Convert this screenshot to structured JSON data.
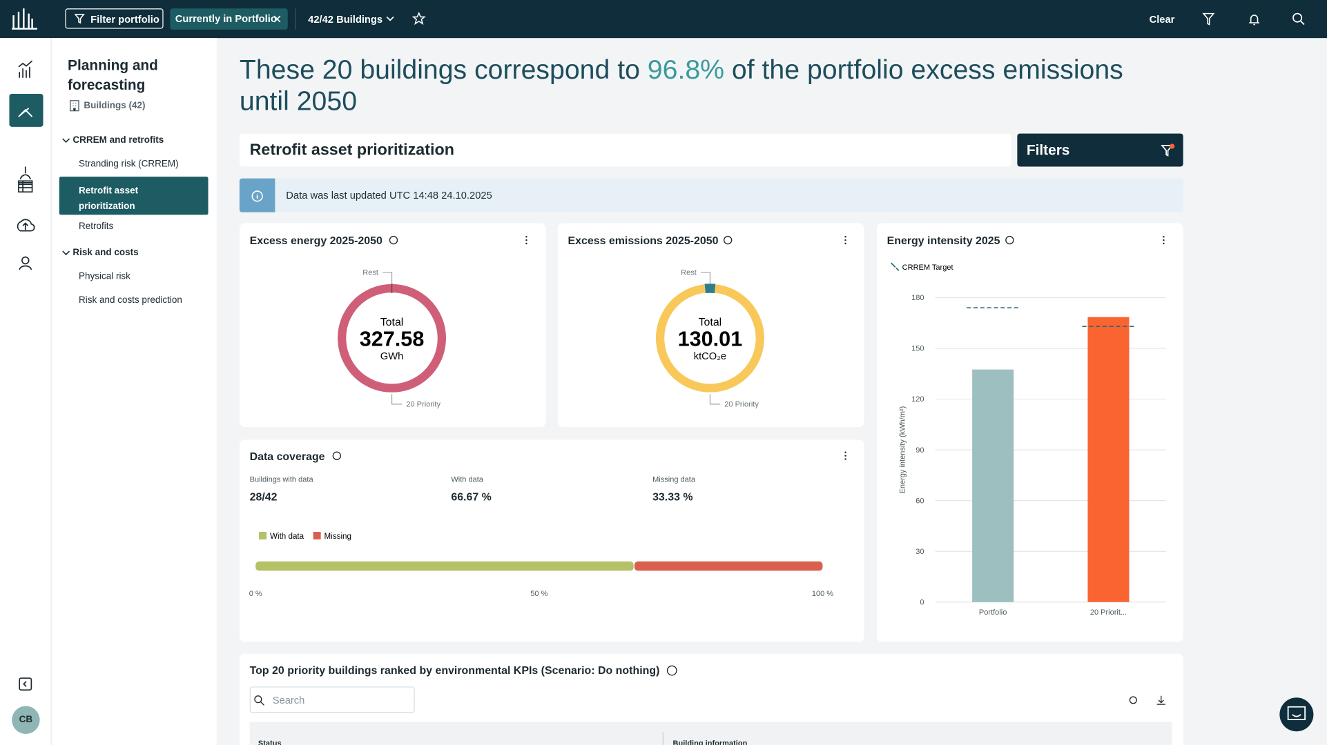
{
  "topbar": {
    "filter_button": "Filter portfolio",
    "chip": "Currently in Portfolio",
    "buildings_dropdown": "42/42 Buildings",
    "clear": "Clear"
  },
  "sidebar": {
    "title": "Planning and forecasting",
    "buildings": "Buildings (42)",
    "groups": [
      {
        "label": "CRREM and retrofits",
        "items": [
          "Stranding risk (CRREM)",
          "Retrofit asset prioritization",
          "Retrofits"
        ]
      },
      {
        "label": "Risk and costs",
        "items": [
          "Physical risk",
          "Risk and costs prediction"
        ]
      }
    ],
    "avatar": "CB"
  },
  "headline": {
    "prefix": "These 20 buildings correspond to ",
    "highlight": "96.8%",
    "suffix": " of the portfolio excess emissions until 2050"
  },
  "section_title": "Retrofit asset prioritization",
  "filters_button": "Filters",
  "info_banner": "Data was last updated UTC 14:48 24.10.2025",
  "chart_data": [
    {
      "type": "pie",
      "title": "Excess energy 2025-2050",
      "categories": [
        "Rest",
        "20 Priority"
      ],
      "values": [
        0.5,
        99.5
      ],
      "colors": [
        "#8c3a52",
        "#cf5f78"
      ],
      "total_label": "Total",
      "total": 327.58,
      "unit": "GWh"
    },
    {
      "type": "pie",
      "title": "Excess emissions 2025-2050",
      "categories": [
        "Rest",
        "20 Priority"
      ],
      "values": [
        3.2,
        96.8
      ],
      "colors": [
        "#2e7d8c",
        "#f8c95a"
      ],
      "total_label": "Total",
      "total": 130.01,
      "unit": "ktCO₂e"
    },
    {
      "type": "hbar",
      "title": "Data coverage",
      "stats": [
        {
          "label": "Buildings with data",
          "value": "28/42"
        },
        {
          "label": "With data",
          "value": "66.67 %"
        },
        {
          "label": "Missing data",
          "value": "33.33 %"
        }
      ],
      "series": [
        {
          "name": "With data",
          "color": "#b5c167",
          "values": [
            66.67
          ]
        },
        {
          "name": "Missing",
          "color": "#d9604f",
          "values": [
            33.33
          ]
        }
      ],
      "xlim": [
        0,
        100
      ],
      "xticks": [
        {
          "value": 0,
          "label": "0 %"
        },
        {
          "value": 50,
          "label": "50 %"
        },
        {
          "value": 100,
          "label": "100 %"
        }
      ]
    },
    {
      "type": "bar",
      "title": "Energy intensity 2025",
      "y_label": "Energy intensity (kWh/m²)",
      "categories": [
        "Portfolio",
        "20 Priorit..."
      ],
      "values": [
        137.5,
        168.5
      ],
      "colors": [
        "#9dbfbf",
        "#f96430"
      ],
      "target": {
        "name": "CRREM Target",
        "color": "#2e6b7a",
        "values": [
          174,
          163
        ]
      },
      "ylim": [
        0,
        180
      ],
      "yticks": [
        0,
        30,
        60,
        90,
        120,
        150,
        180
      ],
      "grid": true
    }
  ],
  "table": {
    "title": "Top 20 priority buildings ranked by environmental KPIs (Scenario: Do nothing)",
    "search_placeholder": "Search",
    "columns": [
      "Status",
      "Building information"
    ]
  }
}
